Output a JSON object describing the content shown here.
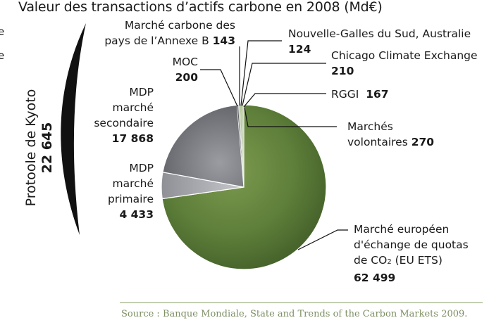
{
  "chart_data": {
    "type": "pie",
    "title": "Valeur des transactions d’actifs carbone en 2008 (Md€)",
    "slices": [
      {
        "label": "Marché européen d'échange de quotas de CO₂ (EU ETS)",
        "value": 62499,
        "value_text": "62 499",
        "color": "#5a7a38"
      },
      {
        "label": "MDP marché primaire",
        "value": 4433,
        "value_text": "4 433",
        "color": "#a9acb3"
      },
      {
        "label": "MDP marché secondaire",
        "value": 17868,
        "value_text": "17 868",
        "color": "#7a7c82"
      },
      {
        "label": "MOC",
        "value": 200,
        "value_text": "200",
        "color": "#5a5c60"
      },
      {
        "label": "Marché carbone des pays de l’Annexe B",
        "value": 143,
        "value_text": "143",
        "color": "#c9ccd0"
      },
      {
        "label": "Nouvelle-Galles du Sud, Australie",
        "value": 124,
        "value_text": "124",
        "color": "#9ab37a"
      },
      {
        "label": "Chicago Climate Exchange",
        "value": 210,
        "value_text": "210",
        "color": "#b6c99a"
      },
      {
        "label": "RGGI",
        "value": 167,
        "value_text": "167",
        "color": "#7f9a5d"
      },
      {
        "label": "Marchés volontaires",
        "value": 270,
        "value_text": "270",
        "color": "#d1dbbf"
      }
    ],
    "group": {
      "label": "Protoole de Kyoto",
      "value_text": "22 645"
    },
    "edge_labels": [
      "e",
      "e"
    ]
  },
  "labels": {
    "annexe_b_line1": "Marché carbone des",
    "annexe_b_line2": "pays de l’Annexe B",
    "annexe_b_value": "143",
    "nsw": "Nouvelle-Galles du Sud, Australie",
    "nsw_value": "124",
    "ccx": "Chicago Climate Exchange",
    "ccx_value": "210",
    "moc": "MOC",
    "moc_value": "200",
    "rggi": "RGGI",
    "rggi_value": "167",
    "mdp2_line1": "MDP",
    "mdp2_line2": "marché",
    "mdp2_line3": "secondaire",
    "mdp2_value": "17 868",
    "vol_line1": "Marchés",
    "vol_line2": "volontaires",
    "vol_value": "270",
    "mdp1_line1": "MDP",
    "mdp1_line2": "marché",
    "mdp1_line3": "primaire",
    "mdp1_value": "4 433",
    "ets_line1": "Marché européen",
    "ets_line2": "d'échange de quotas",
    "ets_line3_prefix": "de CO",
    "ets_line3_sub": "2",
    "ets_line3_suffix": " (EU ETS)",
    "ets_value": "62 499"
  },
  "source": "Source : Banque Mondiale, State and Trends of the Carbon Markets 2009.",
  "colors": {
    "rule": "#8aa36b",
    "source_text": "#7d8f63"
  }
}
